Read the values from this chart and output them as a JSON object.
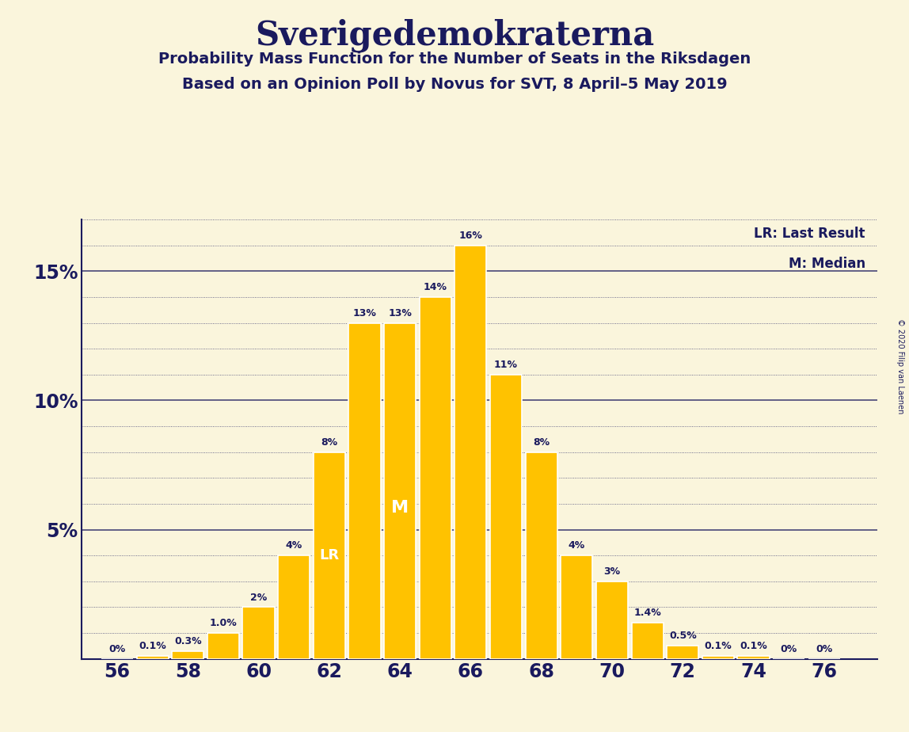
{
  "title": "Sverigedemokraterna",
  "subtitle1": "Probability Mass Function for the Number of Seats in the Riksdagen",
  "subtitle2": "Based on an Opinion Poll by Novus for SVT, 8 April–5 May 2019",
  "copyright": "© 2020 Filip van Laenen",
  "seats": [
    56,
    57,
    58,
    59,
    60,
    61,
    62,
    63,
    64,
    65,
    66,
    67,
    68,
    69,
    70,
    71,
    72,
    73,
    74,
    75,
    76
  ],
  "probabilities": [
    0.0,
    0.1,
    0.3,
    1.0,
    2.0,
    4.0,
    8.0,
    13.0,
    13.0,
    14.0,
    16.0,
    11.0,
    8.0,
    4.0,
    3.0,
    1.4,
    0.5,
    0.1,
    0.1,
    0.0,
    0.0
  ],
  "prob_labels": [
    "0%",
    "0.1%",
    "0.3%",
    "1.0%",
    "2%",
    "4%",
    "8%",
    "13%",
    "13%",
    "14%",
    "16%",
    "11%",
    "8%",
    "4%",
    "3%",
    "1.4%",
    "0.5%",
    "0.1%",
    "0.1%",
    "0%",
    "0%"
  ],
  "bar_color": "#FFC200",
  "background_color": "#FAF5DC",
  "text_color": "#1a1a5e",
  "lr_seat": 62,
  "median_seat": 64,
  "ylim_max": 17,
  "xtick_positions": [
    56,
    58,
    60,
    62,
    64,
    66,
    68,
    70,
    72,
    74,
    76
  ],
  "major_yticks": [
    5,
    10,
    15
  ],
  "bar_width": 0.9
}
